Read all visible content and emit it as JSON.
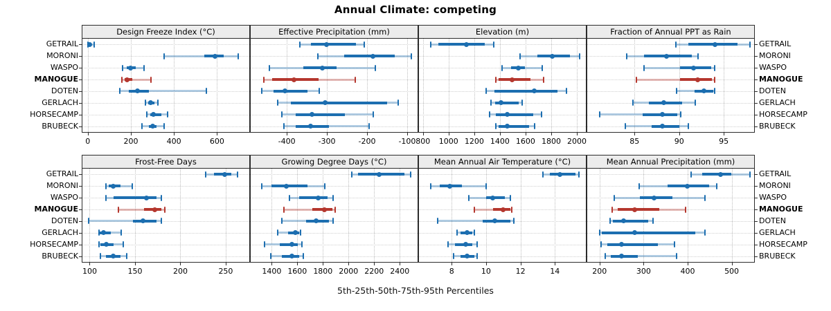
{
  "title": "Annual Climate: competing",
  "caption": "5th-25th-50th-75th-95th Percentiles",
  "sites": [
    "GETRAIL",
    "MORONI",
    "WASPO",
    "MANOGUE",
    "DOTEN",
    "GERLACH",
    "HORSECAMP",
    "BRUBECK"
  ],
  "highlight_site": "MANOGUE",
  "colors": {
    "series": "#1c6eb0",
    "highlight": "#b5372e",
    "strip_bg": "#ececec",
    "panel_border": "#2b2b2b",
    "grid": "#c8c8c8"
  },
  "legend_note": "percentile values per site are [p5, p25, p50, p75, p95]",
  "chart_data": [
    {
      "type": "dot-interval",
      "panel": "Design Freeze Index (°C)",
      "grid_row": 1,
      "xlim": [
        -25,
        750
      ],
      "ticks": [
        0,
        200,
        400,
        600
      ],
      "series": [
        {
          "name": "GETRAIL",
          "percentiles": [
            0,
            3,
            8,
            15,
            30
          ]
        },
        {
          "name": "MORONI",
          "percentiles": [
            355,
            540,
            590,
            630,
            700
          ]
        },
        {
          "name": "WASPO",
          "percentiles": [
            163,
            180,
            197,
            222,
            262
          ]
        },
        {
          "name": "MANOGUE",
          "percentiles": [
            158,
            170,
            182,
            205,
            292
          ]
        },
        {
          "name": "DOTEN",
          "percentiles": [
            150,
            190,
            230,
            285,
            550
          ]
        },
        {
          "name": "GERLACH",
          "percentiles": [
            267,
            281,
            293,
            308,
            327
          ]
        },
        {
          "name": "HORSECAMP",
          "percentiles": [
            275,
            290,
            305,
            340,
            372
          ]
        },
        {
          "name": "BRUBECK",
          "percentiles": [
            252,
            285,
            303,
            320,
            353
          ]
        }
      ]
    },
    {
      "type": "dot-interval",
      "panel": "Effective Precipitation (mm)",
      "grid_row": 1,
      "xlim": [
        -490,
        -74
      ],
      "ticks": [
        -400,
        -300,
        -200,
        -100
      ],
      "series": [
        {
          "name": "GETRAIL",
          "percentiles": [
            -368,
            -340,
            -301,
            -228,
            -207
          ]
        },
        {
          "name": "MORONI",
          "percentiles": [
            -322,
            -257,
            -186,
            -131,
            -90
          ]
        },
        {
          "name": "WASPO",
          "percentiles": [
            -443,
            -358,
            -311,
            -276,
            -179
          ]
        },
        {
          "name": "MANOGUE",
          "percentiles": [
            -458,
            -436,
            -382,
            -320,
            -230
          ]
        },
        {
          "name": "DOTEN",
          "percentiles": [
            -462,
            -433,
            -405,
            -349,
            -319
          ]
        },
        {
          "name": "GERLACH",
          "percentiles": [
            -423,
            -390,
            -304,
            -150,
            -122
          ]
        },
        {
          "name": "HORSECAMP",
          "percentiles": [
            -413,
            -378,
            -338,
            -255,
            -185
          ]
        },
        {
          "name": "BRUBECK",
          "percentiles": [
            -408,
            -378,
            -340,
            -295,
            -195
          ]
        }
      ]
    },
    {
      "type": "dot-interval",
      "panel": "Elevation (m)",
      "grid_row": 1,
      "xlim": [
        769,
        2070
      ],
      "ticks": [
        800,
        1000,
        1200,
        1400,
        1600,
        1800,
        2000
      ],
      "series": [
        {
          "name": "GETRAIL",
          "percentiles": [
            861,
            920,
            1141,
            1280,
            1351
          ]
        },
        {
          "name": "MORONI",
          "percentiles": [
            1555,
            1693,
            1810,
            1944,
            2021
          ]
        },
        {
          "name": "WASPO",
          "percentiles": [
            1418,
            1487,
            1546,
            1595,
            1729
          ]
        },
        {
          "name": "MANOGUE",
          "percentiles": [
            1369,
            1390,
            1495,
            1640,
            1743
          ]
        },
        {
          "name": "DOTEN",
          "percentiles": [
            1294,
            1360,
            1666,
            1850,
            1918
          ]
        },
        {
          "name": "GERLACH",
          "percentiles": [
            1330,
            1361,
            1410,
            1549,
            1576
          ]
        },
        {
          "name": "HORSECAMP",
          "percentiles": [
            1321,
            1370,
            1455,
            1660,
            1725
          ]
        },
        {
          "name": "BRUBECK",
          "percentiles": [
            1366,
            1390,
            1455,
            1630,
            1672
          ]
        }
      ]
    },
    {
      "type": "dot-interval",
      "panel": "Fraction of Annual PPT as Rain",
      "grid_row": 1,
      "xlim": [
        79.7,
        98.4
      ],
      "ticks": [
        85,
        90,
        95
      ],
      "series": [
        {
          "name": "GETRAIL",
          "percentiles": [
            89.6,
            91.0,
            94.0,
            96.5,
            97.9
          ]
        },
        {
          "name": "MORONI",
          "percentiles": [
            84.1,
            86.1,
            88.6,
            91.4,
            92.1
          ]
        },
        {
          "name": "WASPO",
          "percentiles": [
            86.1,
            90.1,
            91.6,
            93.6,
            94.0
          ]
        },
        {
          "name": "MANOGUE",
          "percentiles": [
            85.2,
            90.1,
            92.1,
            93.7,
            94.0
          ]
        },
        {
          "name": "DOTEN",
          "percentiles": [
            89.7,
            91.7,
            92.8,
            93.8,
            94.0
          ]
        },
        {
          "name": "GERLACH",
          "percentiles": [
            84.8,
            86.6,
            88.3,
            90.3,
            91.8
          ]
        },
        {
          "name": "HORSECAMP",
          "percentiles": [
            81.1,
            85.9,
            88.1,
            89.8,
            90.2
          ]
        },
        {
          "name": "BRUBECK",
          "percentiles": [
            84.0,
            86.9,
            88.1,
            90.0,
            91.0
          ]
        }
      ]
    },
    {
      "type": "dot-interval",
      "panel": "Frost-Free Days",
      "grid_row": 2,
      "xlim": [
        92,
        276
      ],
      "ticks": [
        100,
        150,
        200,
        250
      ],
      "series": [
        {
          "name": "GETRAIL",
          "percentiles": [
            228,
            237,
            249,
            256,
            263
          ]
        },
        {
          "name": "MORONI",
          "percentiles": [
            118,
            121,
            126,
            134,
            147
          ]
        },
        {
          "name": "WASPO",
          "percentiles": [
            118,
            126,
            163,
            174,
            179
          ]
        },
        {
          "name": "MANOGUE",
          "percentiles": [
            132,
            160,
            172,
            179,
            183
          ]
        },
        {
          "name": "DOTEN",
          "percentiles": [
            99,
            148,
            159,
            174,
            179
          ]
        },
        {
          "name": "GERLACH",
          "percentiles": [
            110,
            111,
            115,
            123,
            135
          ]
        },
        {
          "name": "HORSECAMP",
          "percentiles": [
            110,
            112,
            118,
            126,
            137
          ]
        },
        {
          "name": "BRUBECK",
          "percentiles": [
            112,
            118,
            126,
            134,
            141
          ]
        }
      ]
    },
    {
      "type": "dot-interval",
      "panel": "Growing Degree Days (°C)",
      "grid_row": 2,
      "xlim": [
        1236,
        2539
      ],
      "ticks": [
        1400,
        1600,
        1800,
        2000,
        2200,
        2400
      ],
      "series": [
        {
          "name": "GETRAIL",
          "percentiles": [
            2023,
            2072,
            2239,
            2435,
            2486
          ]
        },
        {
          "name": "MORONI",
          "percentiles": [
            1324,
            1397,
            1513,
            1681,
            1814
          ]
        },
        {
          "name": "WASPO",
          "percentiles": [
            1537,
            1613,
            1762,
            1838,
            1879
          ]
        },
        {
          "name": "MANOGUE",
          "percentiles": [
            1496,
            1716,
            1810,
            1874,
            1897
          ]
        },
        {
          "name": "DOTEN",
          "percentiles": [
            1479,
            1669,
            1746,
            1849,
            1879
          ]
        },
        {
          "name": "GERLACH",
          "percentiles": [
            1447,
            1530,
            1587,
            1614,
            1627
          ]
        },
        {
          "name": "HORSECAMP",
          "percentiles": [
            1346,
            1461,
            1555,
            1605,
            1638
          ]
        },
        {
          "name": "BRUBECK",
          "percentiles": [
            1395,
            1479,
            1555,
            1614,
            1647
          ]
        }
      ]
    },
    {
      "type": "dot-interval",
      "panel": "Mean Annual Air Temperature (°C)",
      "grid_row": 2,
      "xlim": [
        6.1,
        15.8
      ],
      "ticks": [
        8,
        10,
        12,
        14
      ],
      "series": [
        {
          "name": "GETRAIL",
          "percentiles": [
            13.3,
            13.7,
            14.3,
            15.2,
            15.4
          ]
        },
        {
          "name": "MORONI",
          "percentiles": [
            6.8,
            7.3,
            7.9,
            8.6,
            10.0
          ]
        },
        {
          "name": "WASPO",
          "percentiles": [
            9.0,
            10.0,
            10.4,
            11.1,
            11.4
          ]
        },
        {
          "name": "MANOGUE",
          "percentiles": [
            9.3,
            10.4,
            11.0,
            11.4,
            11.5
          ]
        },
        {
          "name": "DOTEN",
          "percentiles": [
            7.2,
            9.8,
            10.5,
            11.4,
            11.6
          ]
        },
        {
          "name": "GERLACH",
          "percentiles": [
            8.3,
            8.5,
            8.9,
            9.2,
            9.3
          ]
        },
        {
          "name": "HORSECAMP",
          "percentiles": [
            7.8,
            8.2,
            8.8,
            9.2,
            9.5
          ]
        },
        {
          "name": "BRUBECK",
          "percentiles": [
            8.1,
            8.5,
            8.9,
            9.3,
            9.5
          ]
        }
      ]
    },
    {
      "type": "dot-interval",
      "panel": "Mean Annual Precipitation (mm)",
      "grid_row": 2,
      "xlim": [
        172,
        551
      ],
      "ticks": [
        200,
        300,
        400,
        500
      ],
      "series": [
        {
          "name": "GETRAIL",
          "percentiles": [
            408,
            433,
            475,
            499,
            541
          ]
        },
        {
          "name": "MORONI",
          "percentiles": [
            290,
            354,
            400,
            449,
            466
          ]
        },
        {
          "name": "WASPO",
          "percentiles": [
            234,
            291,
            323,
            365,
            440
          ]
        },
        {
          "name": "MANOGUE",
          "percentiles": [
            228,
            241,
            279,
            336,
            395
          ]
        },
        {
          "name": "DOTEN",
          "percentiles": [
            224,
            230,
            254,
            310,
            321
          ]
        },
        {
          "name": "GERLACH",
          "percentiles": [
            200,
            205,
            279,
            417,
            439
          ]
        },
        {
          "name": "HORSECAMP",
          "percentiles": [
            203,
            217,
            250,
            333,
            370
          ]
        },
        {
          "name": "BRUBECK",
          "percentiles": [
            213,
            225,
            250,
            287,
            375
          ]
        }
      ]
    }
  ]
}
